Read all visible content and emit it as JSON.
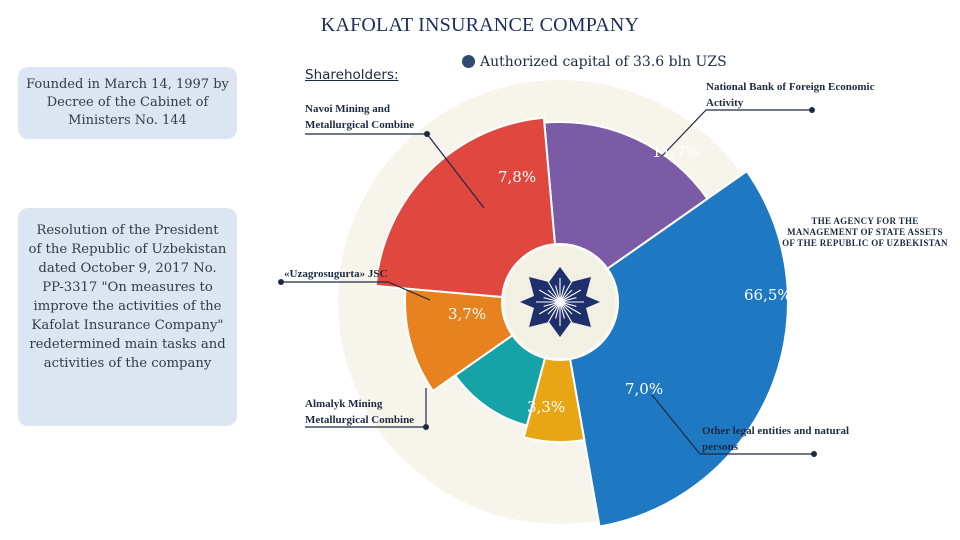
{
  "title": "KAFOLAT INSURANCE COMPANY",
  "founded_text": "Founded in March 14, 1997 by Decree of the Cabinet of Ministers No. 144",
  "resolution_text": "Resolution of the President of the Republic of Uzbekistan dated October 9, 2017 No. PP-3317 \"On measures to improve the activities of the Kafolat Insurance Company\" redetermined main tasks and activities of the company",
  "shareholders_label": "Shareholders:",
  "capital_label": "Authorized capital of 33.6 bln UZS",
  "icons": {
    "logo": "star-emblem-icon",
    "capital_bullet": "bullet-dot-icon"
  },
  "colors": {
    "title": "#1a2d5c",
    "box_bg": "#dce6f2",
    "bullet": "#2f4a73"
  },
  "chart_data": {
    "type": "pie",
    "title": "",
    "series": [
      {
        "values": [
          {
            "label": "National Bank of Foreign Economic Activity",
            "value": 11.7,
            "value_label": "11,7%",
            "color": "#7b5aa6"
          },
          {
            "label": "THE AGENCY FOR THE MANAGEMENT OF STATE ASSETS OF THE REPUBLIC OF UZBEKISTAN",
            "value": 66.5,
            "value_label": "66,5%",
            "color": "#1f79c2"
          },
          {
            "label": "Other legal entities and natural persons",
            "value": 7.0,
            "value_label": "7,0%",
            "color": "#e8a614"
          },
          {
            "label": "Almalyk Mining Metallurgical Combine",
            "value": 3.3,
            "value_label": "3,3%",
            "color": "#16a3a8"
          },
          {
            "label": "«Uzagrosugurta» JSC",
            "value": 3.7,
            "value_label": "3,7%",
            "color": "#e8821e"
          },
          {
            "label": "Navoi Mining and Metallurgical Combine",
            "value": 7.8,
            "value_label": "7,8%",
            "color": "#e0473f"
          }
        ]
      }
    ]
  },
  "labels": {
    "navoi": "Navoi Mining and Metallurgical Combine",
    "nbu": "National Bank of Foreign Economic Activity",
    "agency": "THE AGENCY FOR THE MANAGEMENT OF STATE ASSETS OF THE REPUBLIC OF UZBEKISTAN",
    "uzagro": "«Uzagrosugurta» JSC",
    "almalyk": "Almalyk Mining Metallurgical Combine",
    "other": "Other legal entities and natural persons"
  }
}
